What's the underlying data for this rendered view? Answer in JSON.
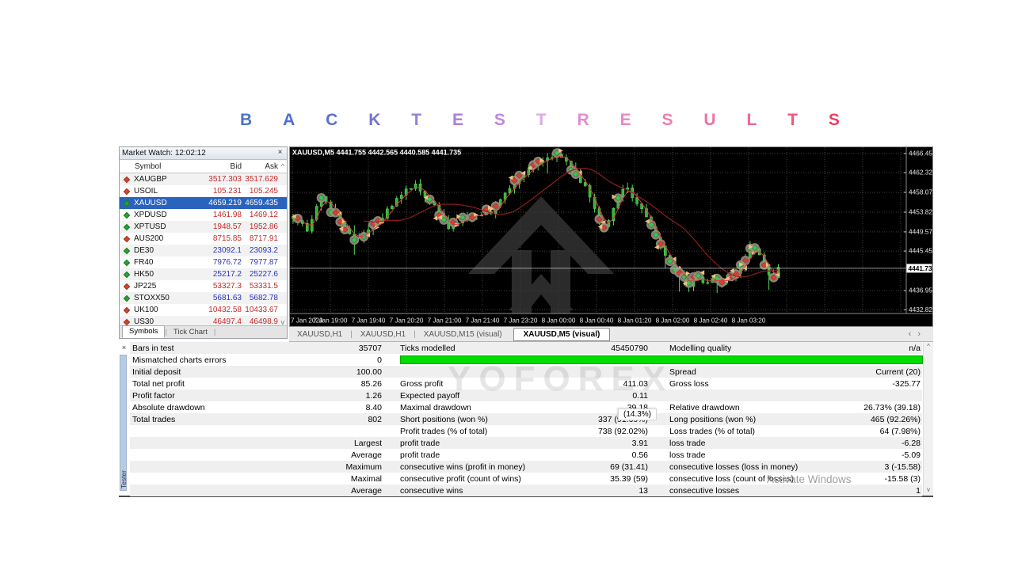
{
  "title": {
    "text": "BACKTEST RESULTS",
    "letters": [
      {
        "ch": "B",
        "color": "#4d74c7"
      },
      {
        "ch": "A",
        "color": "#4f6fcb"
      },
      {
        "ch": "C",
        "color": "#5a70d2"
      },
      {
        "ch": "K",
        "color": "#7473d6"
      },
      {
        "ch": "T",
        "color": "#9480da"
      },
      {
        "ch": "E",
        "color": "#a97edb"
      },
      {
        "ch": "S",
        "color": "#c187de"
      },
      {
        "ch": "T",
        "color": "#dfa9e3"
      },
      {
        "ch": "R",
        "color": "#e08ed3"
      },
      {
        "ch": "E",
        "color": "#e689c5"
      },
      {
        "ch": "S",
        "color": "#ec7fb3"
      },
      {
        "ch": "U",
        "color": "#ee73a1"
      },
      {
        "ch": "L",
        "color": "#ef668f"
      },
      {
        "ch": "T",
        "color": "#f1557d"
      },
      {
        "ch": "S",
        "color": "#ee3f63"
      }
    ]
  },
  "market_watch": {
    "title": "Market Watch: 12:02:12",
    "close_label": "×",
    "columns": [
      "Symbol",
      "Bid",
      "Ask"
    ],
    "scroll_up_glyph": "^",
    "scroll_down_glyph": "v",
    "rows": [
      {
        "symbol": "XAUGBP",
        "bid": "3517.303",
        "ask": "3517.629",
        "dir": "down",
        "color": "red",
        "selected": false
      },
      {
        "symbol": "USOIL",
        "bid": "105.231",
        "ask": "105.245",
        "dir": "down",
        "color": "red",
        "selected": false
      },
      {
        "symbol": "XAUUSD",
        "bid": "4659.219",
        "ask": "4659.435",
        "dir": "up",
        "color": "red",
        "selected": true
      },
      {
        "symbol": "XPDUSD",
        "bid": "1461.98",
        "ask": "1469.12",
        "dir": "up",
        "color": "red",
        "selected": false
      },
      {
        "symbol": "XPTUSD",
        "bid": "1948.57",
        "ask": "1952.86",
        "dir": "up",
        "color": "red",
        "selected": false
      },
      {
        "symbol": "AUS200",
        "bid": "8715.85",
        "ask": "8717.91",
        "dir": "down",
        "color": "red",
        "selected": false
      },
      {
        "symbol": "DE30",
        "bid": "23092.1",
        "ask": "23093.2",
        "dir": "up",
        "color": "blue",
        "selected": false
      },
      {
        "symbol": "FR40",
        "bid": "7976.72",
        "ask": "7977.87",
        "dir": "up",
        "color": "blue",
        "selected": false
      },
      {
        "symbol": "HK50",
        "bid": "25217.2",
        "ask": "25227.6",
        "dir": "up",
        "color": "blue",
        "selected": false
      },
      {
        "symbol": "JP225",
        "bid": "53327.3",
        "ask": "53331.5",
        "dir": "down",
        "color": "red",
        "selected": false
      },
      {
        "symbol": "STOXX50",
        "bid": "5681.63",
        "ask": "5682.78",
        "dir": "up",
        "color": "blue",
        "selected": false
      },
      {
        "symbol": "UK100",
        "bid": "10432.58",
        "ask": "10433.67",
        "dir": "down",
        "color": "red",
        "selected": false
      },
      {
        "symbol": "US30",
        "bid": "46497.4",
        "ask": "46498.9",
        "dir": "down",
        "color": "red",
        "selected": false
      }
    ],
    "tabs": [
      {
        "label": "Symbols",
        "active": true
      },
      {
        "label": "Tick Chart",
        "active": false
      }
    ]
  },
  "chart_data": {
    "type": "candlestick",
    "symbol": "XAUUSD,M5",
    "info_line": "XAUUSD,M5  4441.755 4442.565 4440.585 4441.735",
    "current_price": 4441.735,
    "current_price_label": "4441.735",
    "price_top": 4467.8,
    "price_bottom": 4432.0,
    "y_axis_labels": [
      "4466.450",
      "4462.325",
      "4458.075",
      "4453.825",
      "4449.575",
      "4445.450",
      "4436.950",
      "4432.825"
    ],
    "grid_prices": [
      4466.45,
      4462.325,
      4458.075,
      4453.825,
      4449.575,
      4445.45,
      4441.2,
      4436.95,
      4432.825
    ],
    "x_axis_labels": [
      "7 Jan 2026",
      "7 Jan 19:00",
      "7 Jan 19:40",
      "7 Jan 20:20",
      "7 Jan 21:00",
      "7 Jan 21:40",
      "7 Jan 23:20",
      "8 Jan 00:00",
      "8 Jan 00:40",
      "8 Jan 01:20",
      "8 Jan 02:00",
      "8 Jan 02:40",
      "8 Jan 03:20"
    ],
    "data_width_fraction": 0.795,
    "num_candles": 104,
    "price_path_anchors": [
      [
        0,
        4452.5
      ],
      [
        0.03,
        4450
      ],
      [
        0.056,
        4457.5
      ],
      [
        0.09,
        4453
      ],
      [
        0.129,
        4447.5
      ],
      [
        0.16,
        4450
      ],
      [
        0.19,
        4453.5
      ],
      [
        0.218,
        4457
      ],
      [
        0.25,
        4459.8
      ],
      [
        0.27,
        4457.5
      ],
      [
        0.29,
        4455.5
      ],
      [
        0.32,
        4450.5
      ],
      [
        0.35,
        4452.5
      ],
      [
        0.38,
        4453.5
      ],
      [
        0.41,
        4454
      ],
      [
        0.427,
        4457
      ],
      [
        0.45,
        4459.5
      ],
      [
        0.476,
        4462
      ],
      [
        0.5,
        4464
      ],
      [
        0.524,
        4465.5
      ],
      [
        0.55,
        4466.4
      ],
      [
        0.565,
        4465
      ],
      [
        0.585,
        4461.5
      ],
      [
        0.605,
        4459
      ],
      [
        0.62,
        4455
      ],
      [
        0.637,
        4450.5
      ],
      [
        0.65,
        4452
      ],
      [
        0.661,
        4455
      ],
      [
        0.675,
        4458.5
      ],
      [
        0.685,
        4459.5
      ],
      [
        0.7,
        4457
      ],
      [
        0.718,
        4454.5
      ],
      [
        0.74,
        4450
      ],
      [
        0.76,
        4446
      ],
      [
        0.78,
        4442.5
      ],
      [
        0.798,
        4439.5
      ],
      [
        0.815,
        4438
      ],
      [
        0.83,
        4440
      ],
      [
        0.847,
        4438.5
      ],
      [
        0.865,
        4439.5
      ],
      [
        0.879,
        4438.5
      ],
      [
        0.9,
        4439.5
      ],
      [
        0.92,
        4441
      ],
      [
        0.94,
        4445.5
      ],
      [
        0.955,
        4446.5
      ],
      [
        0.97,
        4442
      ],
      [
        0.987,
        4439.5
      ],
      [
        1,
        4441.7
      ]
    ],
    "ma_fast_period": 3,
    "ma_slow_period": 16,
    "colors": {
      "bg": "#000000",
      "grid": "#3f3f3f",
      "candle": "#54da54",
      "candle_fill": "#3cb23c",
      "ma_fast": "#d93a3a",
      "ma_slow": "#8f1d1d",
      "marker_blob": "#9a9080",
      "marker_up": "#2ecc4e",
      "marker_down": "#e23b2c",
      "marker_arrow": "#edc27d",
      "watermark": "#2b2b2b",
      "axis_text": "#e8e8e8"
    }
  },
  "chart_tabs": {
    "items": [
      {
        "label": "XAUUSD,H1",
        "active": false
      },
      {
        "label": "XAUUSD,H1",
        "active": false
      },
      {
        "label": "XAUUSD,M15 (visual)",
        "active": false
      },
      {
        "label": "XAUUSD,M5 (visual)",
        "active": true
      }
    ],
    "nav_left": "‹",
    "nav_right": "›"
  },
  "results": {
    "close_label": "×",
    "strip_label": "Tester",
    "scroll_up_glyph": "^",
    "scroll_down_glyph": "v",
    "watermark": "YOFOREX",
    "activate_watermark": "Activate Windows",
    "drawdown_overlay": "(14.3%)",
    "rows": [
      {
        "l1": "Bars in test",
        "v1": "35707",
        "l2": "Ticks modelled",
        "v2": "45450790",
        "l3": "Modelling quality",
        "v3": "n/a"
      },
      {
        "l1": "Mismatched charts errors",
        "v1": "0",
        "l2": "",
        "v2": "",
        "l3": "",
        "v3": "",
        "bar": true
      },
      {
        "l1": "Initial deposit",
        "v1": "100.00",
        "l2": "",
        "v2": "",
        "l3": "Spread",
        "v3": "Current (20)"
      },
      {
        "l1": "Total net profit",
        "v1": "85.26",
        "l2": "Gross profit",
        "v2": "411.03",
        "l3": "Gross loss",
        "v3": "-325.77"
      },
      {
        "l1": "Profit factor",
        "v1": "1.26",
        "l2": "Expected payoff",
        "v2": "0.11",
        "l3": "",
        "v3": ""
      },
      {
        "l1": "Absolute drawdown",
        "v1": "8.40",
        "l2": "Maximal drawdown",
        "v2": "39.18",
        "l3": "Relative drawdown",
        "v3": "26.73% (39.18)"
      },
      {
        "l1": "Total trades",
        "v1": "802",
        "l2": "Short positions (won %)",
        "v2": "337 (91.69%)",
        "l3": "Long positions (won %)",
        "v3": "465 (92.26%)"
      },
      {
        "l1": "",
        "v1": "",
        "l2": "Profit trades (% of total)",
        "v2": "738 (92.02%)",
        "l3": "Loss trades (% of total)",
        "v3": "64 (7.98%)"
      },
      {
        "l1": "",
        "v1": "Largest",
        "l2": "profit trade",
        "v2": "3.91",
        "l3": "loss trade",
        "v3": "-6.28"
      },
      {
        "l1": "",
        "v1": "Average",
        "l2": "profit trade",
        "v2": "0.56",
        "l3": "loss trade",
        "v3": "-5.09"
      },
      {
        "l1": "",
        "v1": "Maximum",
        "l2": "consecutive wins (profit in money)",
        "v2": "69 (31.41)",
        "l3": "consecutive losses (loss in money)",
        "v3": "3 (-15.58)"
      },
      {
        "l1": "",
        "v1": "Maximal",
        "l2": "consecutive profit (count of wins)",
        "v2": "35.39 (59)",
        "l3": "consecutive loss (count of losses)",
        "v3": "-15.58 (3)"
      },
      {
        "l1": "",
        "v1": "Average",
        "l2": "consecutive wins",
        "v2": "13",
        "l3": "consecutive losses",
        "v3": "1"
      }
    ]
  }
}
